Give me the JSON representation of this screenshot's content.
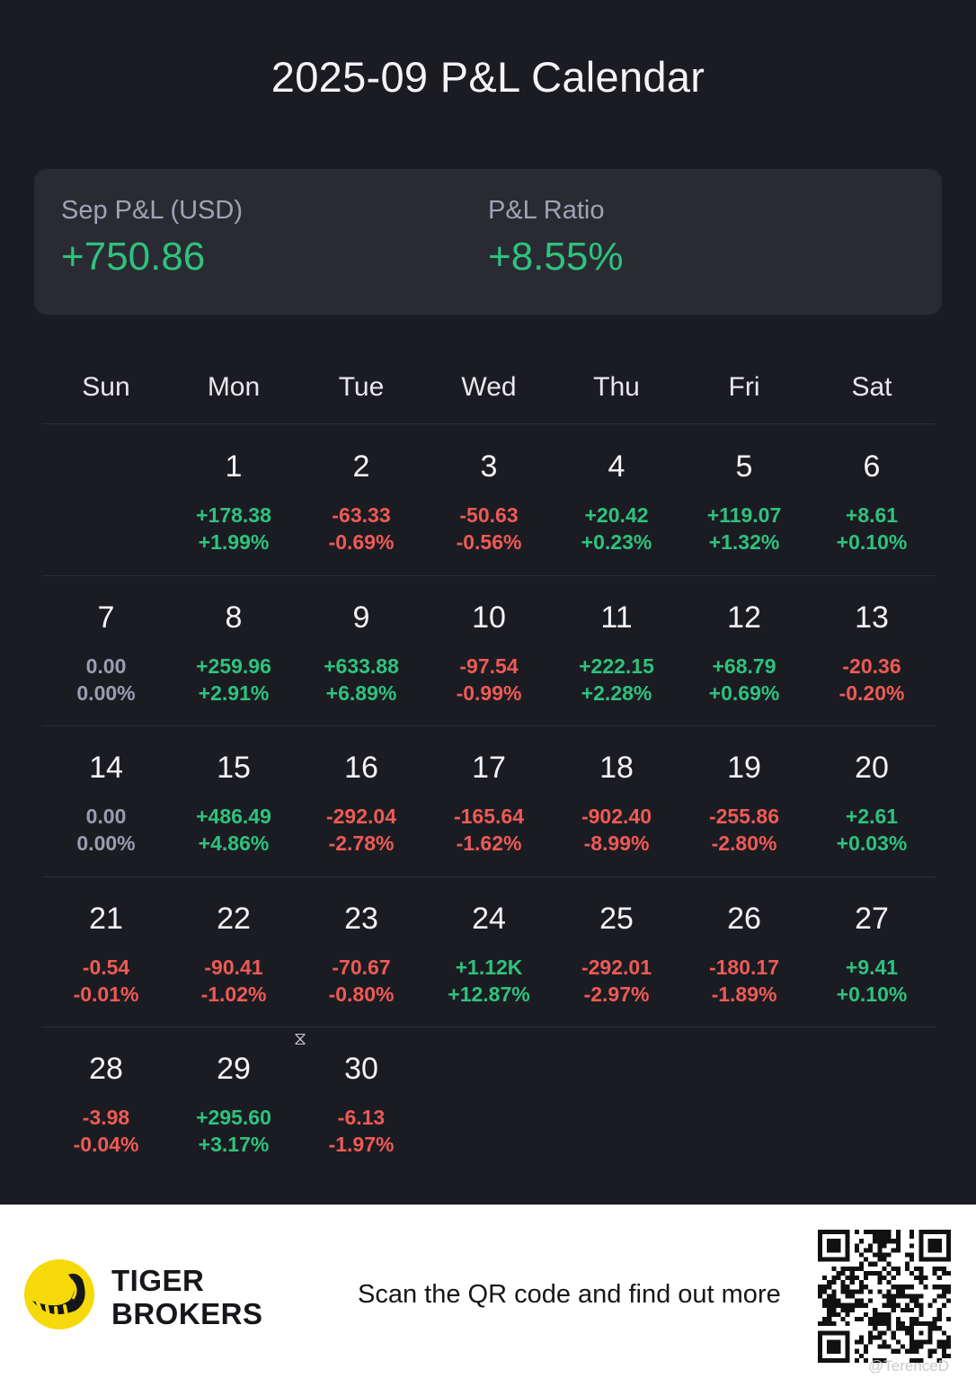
{
  "title": "2025-09 P&L Calendar",
  "summary": {
    "pl_label": "Sep P&L (USD)",
    "pl_value": "+750.86",
    "ratio_label": "P&L Ratio",
    "ratio_value": "+8.55%"
  },
  "weekdays": [
    "Sun",
    "Mon",
    "Tue",
    "Wed",
    "Thu",
    "Fri",
    "Sat"
  ],
  "weeks": [
    [
      null,
      {
        "day": "1",
        "pl": "+178.38",
        "pct": "+1.99%",
        "sign": "pos"
      },
      {
        "day": "2",
        "pl": "-63.33",
        "pct": "-0.69%",
        "sign": "neg"
      },
      {
        "day": "3",
        "pl": "-50.63",
        "pct": "-0.56%",
        "sign": "neg"
      },
      {
        "day": "4",
        "pl": "+20.42",
        "pct": "+0.23%",
        "sign": "pos"
      },
      {
        "day": "5",
        "pl": "+119.07",
        "pct": "+1.32%",
        "sign": "pos"
      },
      {
        "day": "6",
        "pl": "+8.61",
        "pct": "+0.10%",
        "sign": "pos"
      }
    ],
    [
      {
        "day": "7",
        "pl": "0.00",
        "pct": "0.00%",
        "sign": "zero"
      },
      {
        "day": "8",
        "pl": "+259.96",
        "pct": "+2.91%",
        "sign": "pos"
      },
      {
        "day": "9",
        "pl": "+633.88",
        "pct": "+6.89%",
        "sign": "pos"
      },
      {
        "day": "10",
        "pl": "-97.54",
        "pct": "-0.99%",
        "sign": "neg"
      },
      {
        "day": "11",
        "pl": "+222.15",
        "pct": "+2.28%",
        "sign": "pos"
      },
      {
        "day": "12",
        "pl": "+68.79",
        "pct": "+0.69%",
        "sign": "pos"
      },
      {
        "day": "13",
        "pl": "-20.36",
        "pct": "-0.20%",
        "sign": "neg"
      }
    ],
    [
      {
        "day": "14",
        "pl": "0.00",
        "pct": "0.00%",
        "sign": "zero"
      },
      {
        "day": "15",
        "pl": "+486.49",
        "pct": "+4.86%",
        "sign": "pos"
      },
      {
        "day": "16",
        "pl": "-292.04",
        "pct": "-2.78%",
        "sign": "neg"
      },
      {
        "day": "17",
        "pl": "-165.64",
        "pct": "-1.62%",
        "sign": "neg"
      },
      {
        "day": "18",
        "pl": "-902.40",
        "pct": "-8.99%",
        "sign": "neg"
      },
      {
        "day": "19",
        "pl": "-255.86",
        "pct": "-2.80%",
        "sign": "neg"
      },
      {
        "day": "20",
        "pl": "+2.61",
        "pct": "+0.03%",
        "sign": "pos"
      }
    ],
    [
      {
        "day": "21",
        "pl": "-0.54",
        "pct": "-0.01%",
        "sign": "neg"
      },
      {
        "day": "22",
        "pl": "-90.41",
        "pct": "-1.02%",
        "sign": "neg"
      },
      {
        "day": "23",
        "pl": "-70.67",
        "pct": "-0.80%",
        "sign": "neg"
      },
      {
        "day": "24",
        "pl": "+1.12K",
        "pct": "+12.87%",
        "sign": "pos"
      },
      {
        "day": "25",
        "pl": "-292.01",
        "pct": "-2.97%",
        "sign": "neg"
      },
      {
        "day": "26",
        "pl": "-180.17",
        "pct": "-1.89%",
        "sign": "neg"
      },
      {
        "day": "27",
        "pl": "+9.41",
        "pct": "+0.10%",
        "sign": "pos"
      }
    ],
    [
      {
        "day": "28",
        "pl": "-3.98",
        "pct": "-0.04%",
        "sign": "neg"
      },
      {
        "day": "29",
        "pl": "+295.60",
        "pct": "+3.17%",
        "sign": "pos"
      },
      {
        "day": "30",
        "pl": "-6.13",
        "pct": "-1.97%",
        "sign": "neg",
        "pending_icon": "hourglass-icon"
      },
      null,
      null,
      null,
      null
    ]
  ],
  "footer": {
    "brand_line1": "TIGER",
    "brand_line2": "BROKERS",
    "scan_text": "Scan the QR code and find out more",
    "watermark": "@TerenceD"
  },
  "colors": {
    "positive": "#2ec27e",
    "negative": "#ee5a55",
    "neutral": "#9a9db0",
    "brand_yellow": "#f5d90a"
  }
}
